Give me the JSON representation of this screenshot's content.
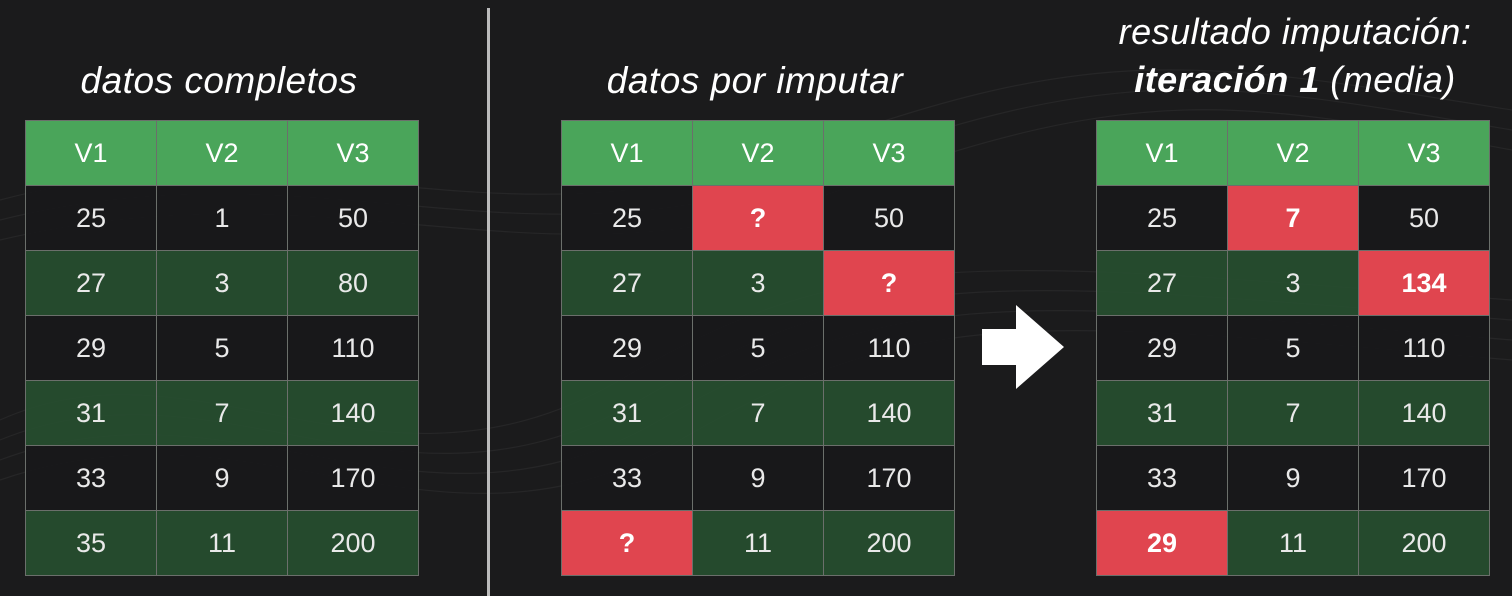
{
  "panels": {
    "complete": {
      "title": "datos completos",
      "headers": [
        "V1",
        "V2",
        "V3"
      ],
      "rows": [
        [
          "25",
          "1",
          "50"
        ],
        [
          "27",
          "3",
          "80"
        ],
        [
          "29",
          "5",
          "110"
        ],
        [
          "31",
          "7",
          "140"
        ],
        [
          "33",
          "9",
          "170"
        ],
        [
          "35",
          "11",
          "200"
        ]
      ]
    },
    "missing": {
      "title": "datos por imputar",
      "headers": [
        "V1",
        "V2",
        "V3"
      ],
      "rows": [
        [
          "25",
          "?",
          "50"
        ],
        [
          "27",
          "3",
          "?"
        ],
        [
          "29",
          "5",
          "110"
        ],
        [
          "31",
          "7",
          "140"
        ],
        [
          "33",
          "9",
          "170"
        ],
        [
          "?",
          "11",
          "200"
        ]
      ]
    },
    "result": {
      "title_line1": "resultado imputación:",
      "title_bold": "iteración 1",
      "title_rest": " (media)",
      "headers": [
        "V1",
        "V2",
        "V3"
      ],
      "rows": [
        [
          "25",
          "7",
          "50"
        ],
        [
          "27",
          "3",
          "134"
        ],
        [
          "29",
          "5",
          "110"
        ],
        [
          "31",
          "7",
          "140"
        ],
        [
          "33",
          "9",
          "170"
        ],
        [
          "29",
          "11",
          "200"
        ]
      ]
    }
  },
  "colors": {
    "header_green": "#4aa55a",
    "row_green": "#264e2f",
    "row_dark": "#18181a",
    "missing_red": "#e0454f",
    "arrow": "#ffffff"
  },
  "icons": {
    "arrow": "right-arrow-icon"
  }
}
